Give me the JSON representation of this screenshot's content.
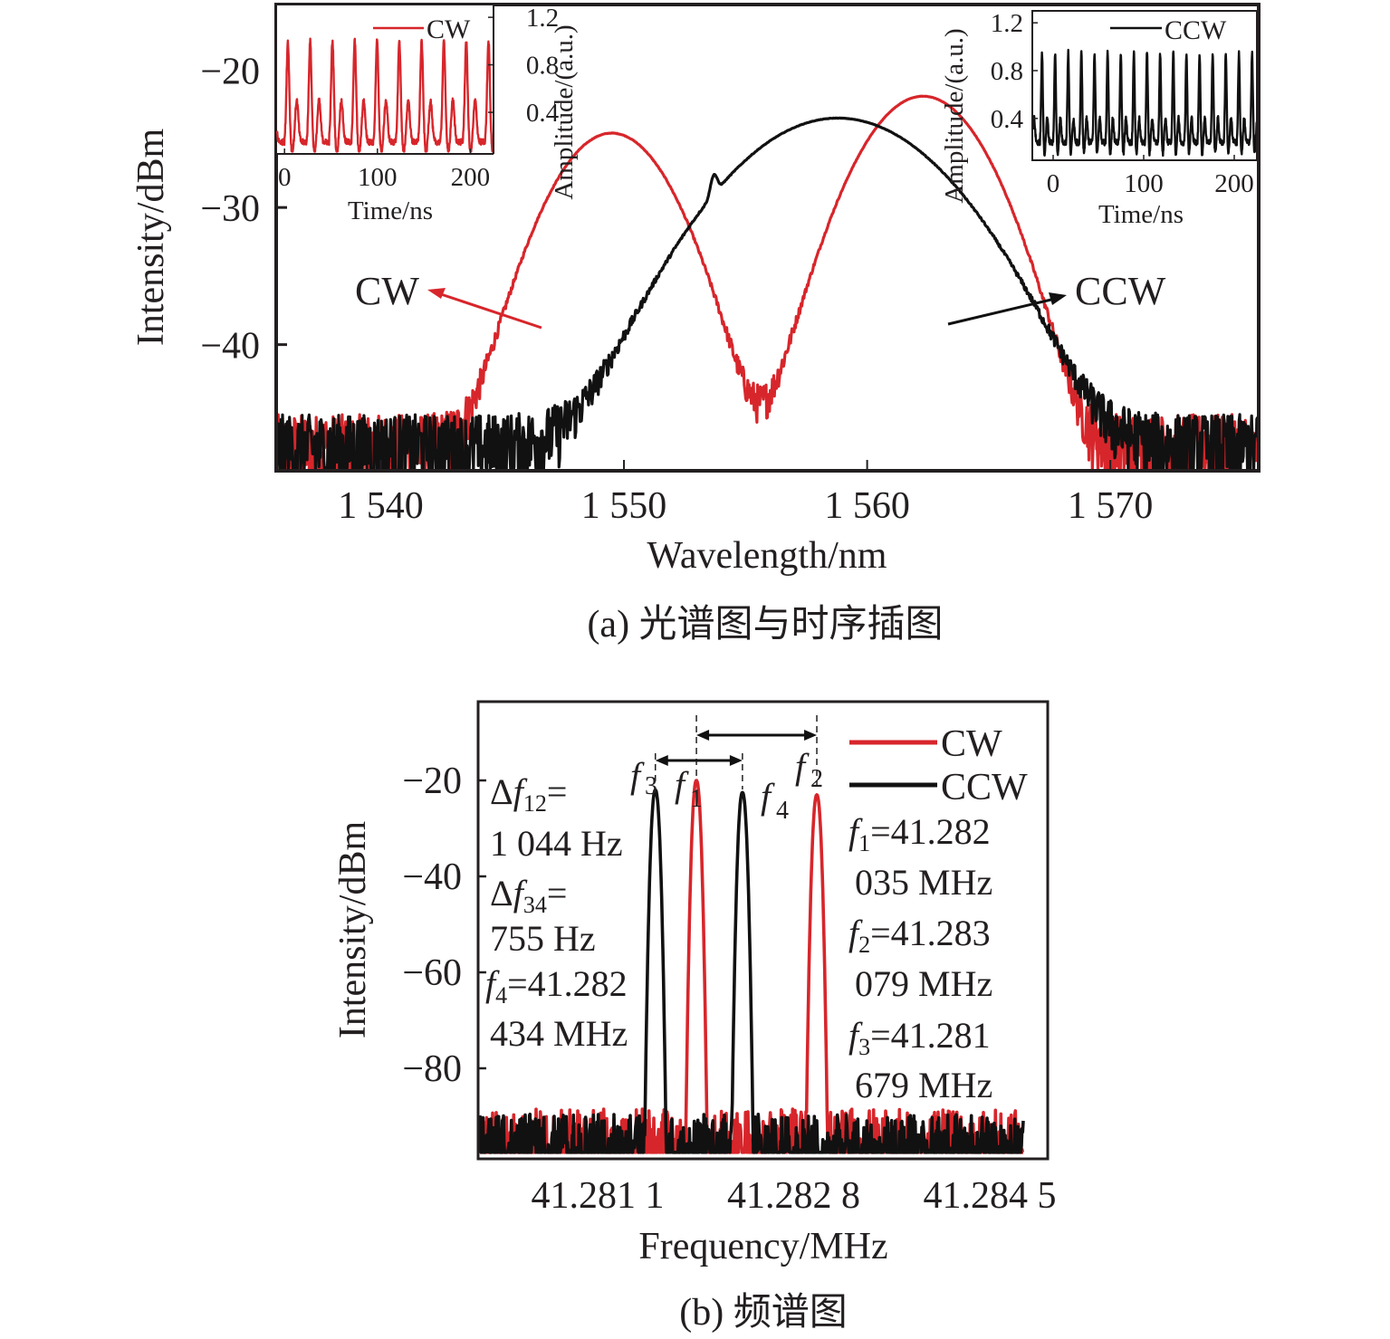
{
  "figure": {
    "caption_a": "(a) 光谱图与时序插图",
    "caption_b": "(b) 频谱图"
  },
  "colors": {
    "cw": "#d7262b",
    "ccw": "#111111",
    "axis": "#231f20"
  },
  "chart_data": [
    {
      "id": "a",
      "type": "line",
      "title": "(a) 光谱图与时序插图",
      "xlabel": "Wavelength/nm",
      "ylabel": "Intensity/dBm",
      "xlim": [
        1535.7,
        1576.1
      ],
      "ylim": [
        -49.2,
        -15.2
      ],
      "xticks": [
        1540,
        1550,
        1560,
        1570
      ],
      "xtick_labels": [
        "1 540",
        "1 550",
        "1 560",
        "1 570"
      ],
      "yticks": [
        -20,
        -30,
        -40
      ],
      "ytick_labels": [
        "−20",
        "−30",
        "−40"
      ],
      "grid": false,
      "annotations": [
        {
          "text": "CW",
          "points_to_series": "CW"
        },
        {
          "text": "CCW",
          "points_to_series": "CCW"
        }
      ],
      "series": [
        {
          "name": "CW",
          "color": "#d7262b",
          "shape": "two gaussian-like peaks",
          "peaks": [
            {
              "center_nm": 1549.5,
              "peak_dBm": -24.6,
              "fwhm_nm": 4.2
            },
            {
              "center_nm": 1562.3,
              "peak_dBm": -21.9,
              "fwhm_nm": 4.4
            }
          ],
          "noise_floor_dBm": -48.0
        },
        {
          "name": "CCW",
          "color": "#111111",
          "shape": "single broad peak with narrow spike",
          "peaks": [
            {
              "center_nm": 1558.8,
              "peak_dBm": -23.5,
              "fwhm_nm": 7.5
            },
            {
              "center_nm": 1553.7,
              "peak_dBm": -33.2,
              "fwhm_nm": 0.3,
              "kind": "spike"
            }
          ],
          "noise_floor_dBm": -48.0
        }
      ],
      "insets": [
        {
          "id": "inset-cw",
          "type": "line",
          "legend": "CW",
          "color": "#d7262b",
          "xlabel": "Time/ns",
          "ylabel": "Amplitude/(a.u.)",
          "xticks": [
            0,
            100,
            200
          ],
          "xtick_labels": [
            "0",
            "100",
            "200"
          ],
          "yticks": [
            0.4,
            0.8,
            1.2
          ],
          "ytick_labels": [
            "0.4",
            "0.8",
            "1.2"
          ],
          "xlim": [
            -8,
            225
          ],
          "ylim": [
            0.05,
            1.3
          ],
          "yaxis_side": "right",
          "legend_position": "top-right",
          "pulse_period_ns": 24,
          "pulse_main_amplitude": 1.0,
          "pulse_secondary_amplitude": 0.5,
          "baseline": 0.15
        },
        {
          "id": "inset-ccw",
          "type": "line",
          "legend": "CCW",
          "color": "#111111",
          "xlabel": "Time/ns",
          "ylabel": "Amplitude/(a.u.)",
          "xticks": [
            0,
            100,
            200
          ],
          "xtick_labels": [
            "0",
            "100",
            "200"
          ],
          "yticks": [
            0.4,
            0.8,
            1.2
          ],
          "ytick_labels": [
            "0.4",
            "0.8",
            "1.2"
          ],
          "xlim": [
            -22,
            225
          ],
          "ylim": [
            0.05,
            1.3
          ],
          "yaxis_side": "left",
          "legend_position": "top-right",
          "pulse_period_ns": 14.5,
          "pulse_main_amplitude": 0.95,
          "pulse_secondary_amplitude": 0.4,
          "baseline": 0.2
        }
      ]
    },
    {
      "id": "b",
      "type": "line",
      "title": "(b) 频谱图",
      "xlabel": "Frequency/MHz",
      "ylabel": "Intensity/dBm",
      "xlim": [
        41.28048,
        41.28632
      ],
      "ylim": [
        -98.5,
        5
      ],
      "xticks": [
        41.2811,
        41.2828,
        41.2845
      ],
      "xtick_labels": [
        "41.281 1",
        "41.282 8",
        "41.284 5"
      ],
      "yticks": [
        -20,
        -40,
        -60,
        -80
      ],
      "ytick_labels": [
        "−20",
        "−40",
        "−60",
        "−80"
      ],
      "grid": false,
      "legend": {
        "position": "top-right",
        "entries": [
          "CW",
          "CCW"
        ]
      },
      "series": [
        {
          "name": "CW",
          "color": "#d7262b",
          "peaks": [
            {
              "label": "f1",
              "freq_MHz": 41.282035,
              "peak_dBm": -20.0
            },
            {
              "label": "f2",
              "freq_MHz": 41.283079,
              "peak_dBm": -23.0
            }
          ],
          "noise_floor_dBm": -97.0
        },
        {
          "name": "CCW",
          "color": "#111111",
          "peaks": [
            {
              "label": "f3",
              "freq_MHz": 41.281679,
              "peak_dBm": -22.0
            },
            {
              "label": "f4",
              "freq_MHz": 41.282434,
              "peak_dBm": -22.5
            }
          ],
          "noise_floor_dBm": -97.0
        }
      ],
      "markers": {
        "f1": "f",
        "f1_sub": "1",
        "f2": "f",
        "f2_sub": "2",
        "f3": "f",
        "f3_sub": "3",
        "f4": "f",
        "f4_sub": "4"
      },
      "arrows": [
        {
          "from": "f1",
          "to": "f2",
          "label": "Δf12"
        },
        {
          "from": "f3",
          "to": "f4",
          "label": "Δf34"
        }
      ],
      "annotations_left": [
        {
          "delta": "Δ",
          "f": "f",
          "sub": "12",
          "eq": "="
        },
        {
          "text": "1 044 Hz"
        },
        {
          "delta": "Δ",
          "f": "f",
          "sub": "34",
          "eq": "="
        },
        {
          "text": "755 Hz"
        },
        {
          "f": "f",
          "sub": "4",
          "eq": "=41.282"
        },
        {
          "text": "434 MHz"
        }
      ],
      "annotations_right": [
        {
          "f": "f",
          "sub": "1",
          "eq": "=41.282"
        },
        {
          "text": "035 MHz"
        },
        {
          "f": "f",
          "sub": "2",
          "eq": "=41.283"
        },
        {
          "text": "079 MHz"
        },
        {
          "f": "f",
          "sub": "3",
          "eq": "=41.281"
        },
        {
          "text": "679 MHz"
        }
      ]
    }
  ]
}
